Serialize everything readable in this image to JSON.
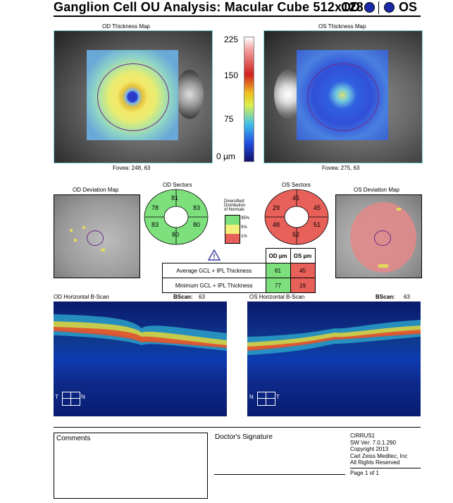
{
  "header": {
    "title": "Ganglion Cell OU Analysis: Macular Cube 512x128",
    "od_label": "OD",
    "os_label": "OS",
    "dot_color": "#1c2aa8"
  },
  "thickness_maps": {
    "od_title": "OD Thickness Map",
    "os_title": "OS Thickness Map",
    "od_fovea": "Fovea: 248, 63",
    "os_fovea": "Fovea: 275, 63",
    "scale_ticks": [
      "225",
      "150",
      "75",
      "0 µm"
    ]
  },
  "deviation": {
    "od_title": "OD Deviation Map",
    "os_title": "OS Deviation Map"
  },
  "sectors": {
    "od_title": "OD Sectors",
    "os_title": "OS Sectors",
    "od_values": {
      "top": "81",
      "upper_left": "78",
      "upper_right": "83",
      "lower_left": "83",
      "lower_right": "80",
      "bottom": "80"
    },
    "os_values": {
      "top": "45",
      "upper_left": "29",
      "upper_right": "45",
      "lower_left": "48",
      "lower_right": "51",
      "bottom": "52"
    },
    "od_color": "#7de07d",
    "os_color": "#e8605a"
  },
  "legend": {
    "title_lines": [
      "Diversified:",
      "Distribution",
      "of Normals"
    ],
    "items": [
      {
        "label": "95%",
        "color": "#7de07d"
      },
      {
        "label": "5%",
        "color": "#f2f07a"
      },
      {
        "label": "1%",
        "color": "#e8605a"
      }
    ]
  },
  "gcl_table": {
    "col_od": "OD µm",
    "col_os": "OS µm",
    "rows": [
      {
        "label": "Average GCL + IPL Thickness",
        "od": "81",
        "os": "45"
      },
      {
        "label": "Minimum GCL + IPL Thickness",
        "od": "77",
        "os": "19"
      }
    ]
  },
  "bscans": {
    "od_title": "OD Horizontal B-Scan",
    "os_title": "OS Horizontal B-Scan",
    "bscan_label": "BScan:",
    "od_bscan": "63",
    "os_bscan": "63",
    "od_left": "T",
    "od_right": "N",
    "os_left": "N",
    "os_right": "T"
  },
  "footer": {
    "comments": "Comments",
    "signature": "Doctor's Signature",
    "info_lines": [
      "CIRRUS1",
      "SW Ver: 7.0.1.290",
      "Copyright 2013",
      "Carl Zeiss Meditec, Inc",
      "All Rights Reserved"
    ],
    "page": "Page 1 of 1"
  }
}
